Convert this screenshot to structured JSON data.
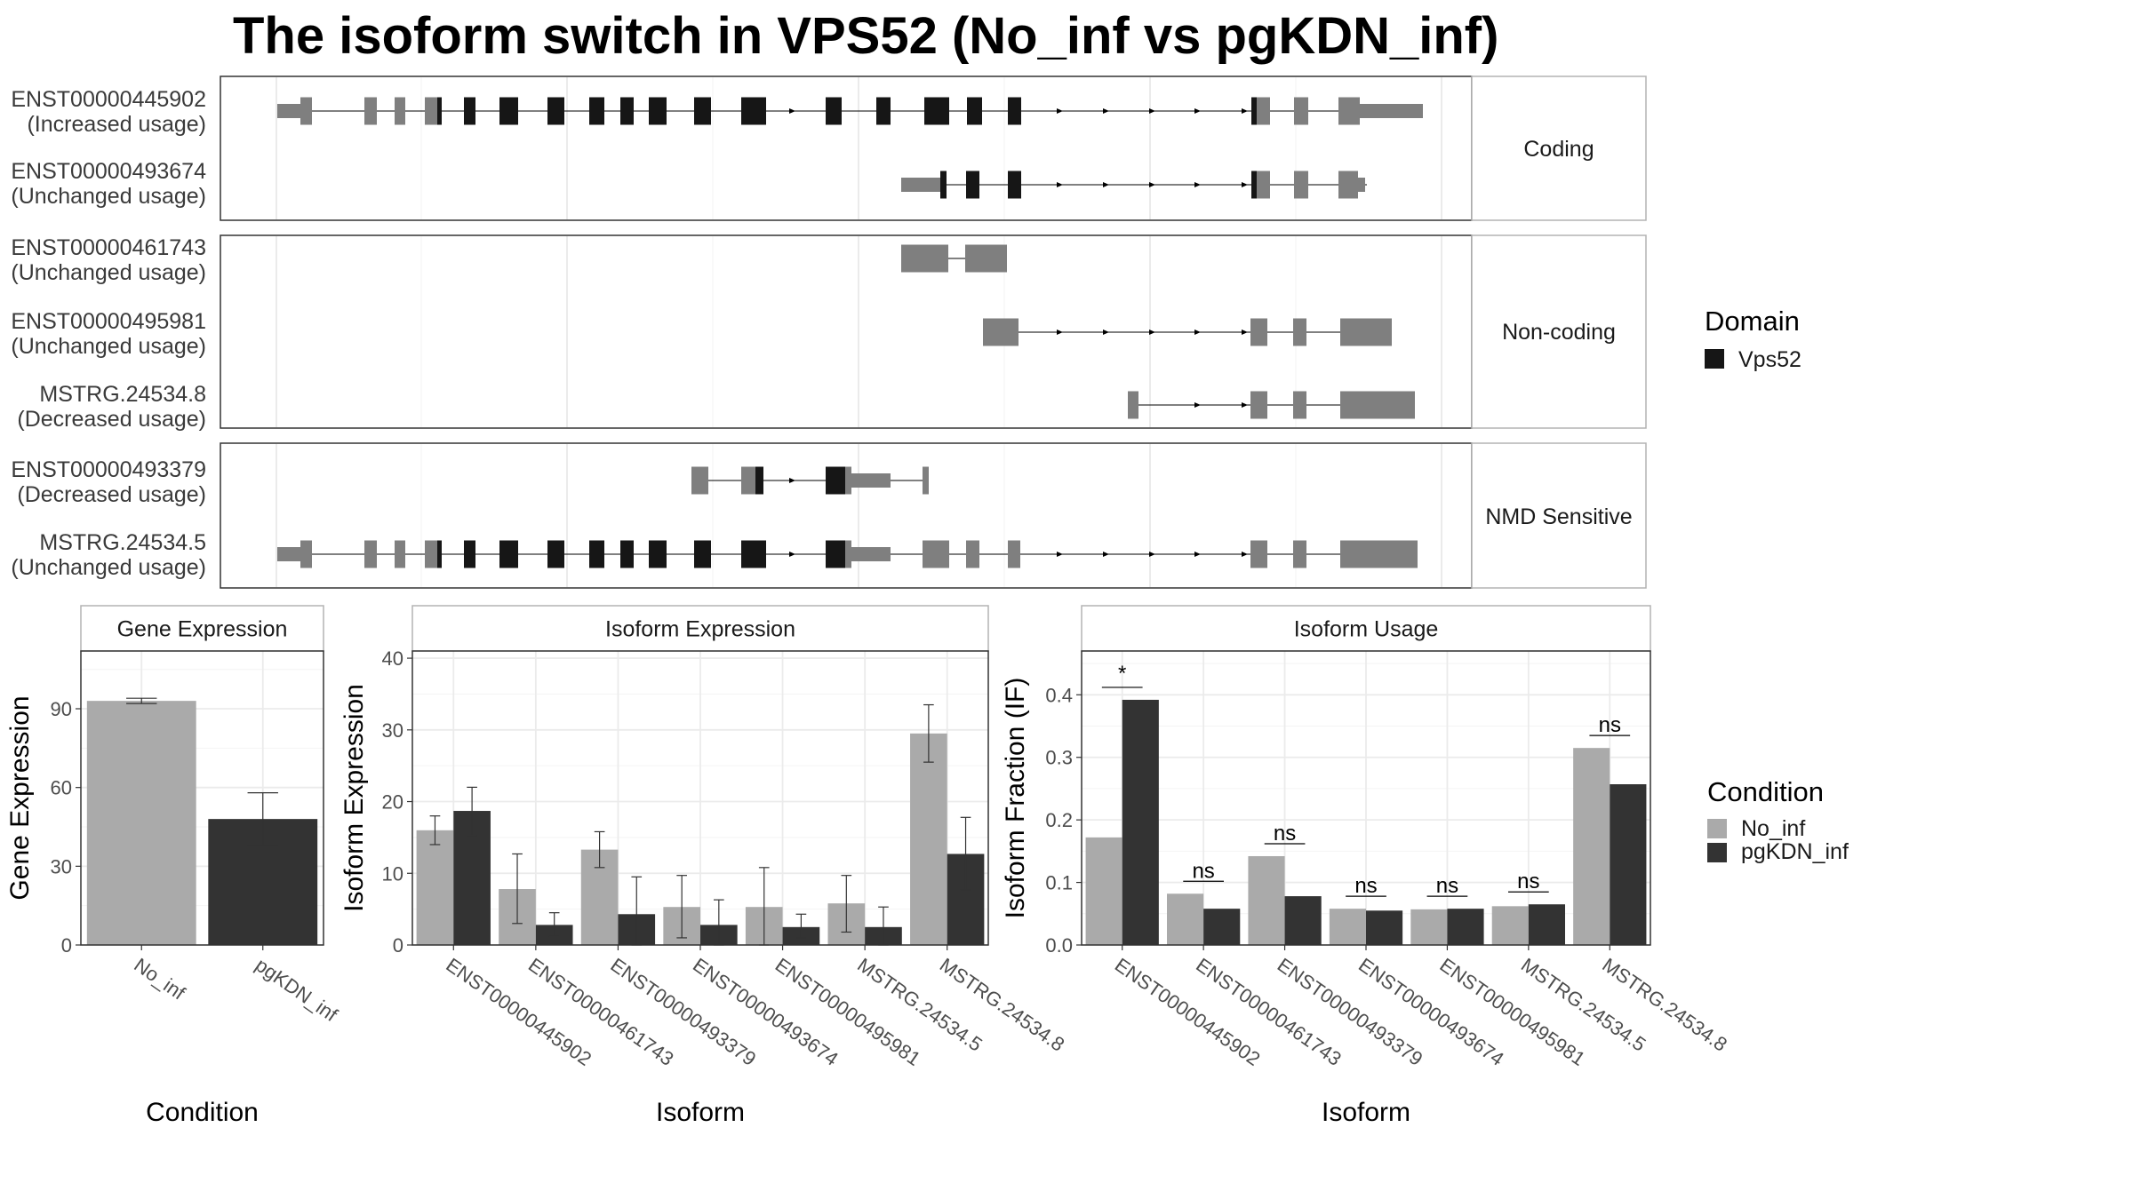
{
  "title": "The isoform switch in VPS52 (No_inf vs pgKDN_inf)",
  "colors": {
    "exon": "#7f7f7f",
    "domain": "#161616",
    "no_inf": "#aaaaaa",
    "pgkdn_inf": "#333333",
    "grid": "#ebebeb",
    "panel_border": "#333333",
    "strip_border": "#b3b3b3"
  },
  "domain_legend": {
    "title": "Domain",
    "items": [
      {
        "label": "Vps52",
        "color": "#161616"
      }
    ]
  },
  "condition_legend": {
    "title": "Condition",
    "items": [
      {
        "label": "No_inf",
        "color": "#aaaaaa"
      },
      {
        "label": "pgKDN_inf",
        "color": "#333333"
      }
    ]
  },
  "transcript_groups": [
    {
      "label": "Coding",
      "transcripts": [
        {
          "id": "ENST00000445902",
          "usage": "(Increased usage)"
        },
        {
          "id": "ENST00000493674",
          "usage": "(Unchanged usage)"
        }
      ]
    },
    {
      "label": "Non-coding",
      "transcripts": [
        {
          "id": "ENST00000461743",
          "usage": "(Unchanged usage)"
        },
        {
          "id": "ENST00000495981",
          "usage": "(Unchanged usage)"
        },
        {
          "id": "MSTRG.24534.8",
          "usage": "(Decreased usage)"
        }
      ]
    },
    {
      "label": "NMD Sensitive",
      "transcripts": [
        {
          "id": "ENST00000493379",
          "usage": "(Decreased usage)"
        },
        {
          "id": "MSTRG.24534.5",
          "usage": "(Unchanged usage)"
        }
      ]
    }
  ],
  "chart_data": [
    {
      "type": "bar",
      "panel": "Gene Expression",
      "xlabel": "Condition",
      "ylabel": "Gene Expression",
      "categories": [
        "No_inf",
        "pgKDN_inf"
      ],
      "values": [
        93,
        48
      ],
      "errors": [
        [
          92,
          94
        ],
        [
          38,
          58
        ]
      ],
      "bar_colors": [
        "#aaaaaa",
        "#333333"
      ],
      "ylim": [
        0,
        112
      ],
      "yticks": [
        0,
        30,
        60,
        90
      ],
      "grid": true
    },
    {
      "type": "bar",
      "panel": "Isoform Expression",
      "xlabel": "Isoform",
      "ylabel": "Isoform Expression",
      "categories": [
        "ENST00000445902",
        "ENST00000461743",
        "ENST00000493379",
        "ENST00000493674",
        "ENST00000495981",
        "MSTRG.24534.5",
        "MSTRG.24534.8"
      ],
      "series": [
        {
          "name": "No_inf",
          "values": [
            16,
            7.8,
            13.3,
            5.3,
            5.3,
            5.8,
            29.5
          ],
          "errors": [
            [
              14,
              18
            ],
            [
              3,
              12.7
            ],
            [
              10.8,
              15.8
            ],
            [
              1,
              9.7
            ],
            [
              0,
              10.8
            ],
            [
              1.8,
              9.7
            ],
            [
              25.5,
              33.5
            ]
          ]
        },
        {
          "name": "pgKDN_inf",
          "values": [
            18.7,
            2.8,
            4.3,
            2.8,
            2.5,
            2.5,
            12.7
          ],
          "errors": [
            [
              15.3,
              22
            ],
            [
              1.2,
              4.5
            ],
            [
              0,
              9.5
            ],
            [
              0,
              6.3
            ],
            [
              1,
              4.3
            ],
            [
              0,
              5.3
            ],
            [
              7.7,
              17.8
            ]
          ]
        }
      ],
      "ylim": [
        0,
        41
      ],
      "yticks": [
        0,
        10,
        20,
        30,
        40
      ],
      "grid": true
    },
    {
      "type": "bar",
      "panel": "Isoform Usage",
      "xlabel": "Isoform",
      "ylabel": "Isoform Fraction (IF)",
      "categories": [
        "ENST00000445902",
        "ENST00000461743",
        "ENST00000493379",
        "ENST00000493674",
        "ENST00000495981",
        "MSTRG.24534.5",
        "MSTRG.24534.8"
      ],
      "series": [
        {
          "name": "No_inf",
          "values": [
            0.172,
            0.082,
            0.142,
            0.058,
            0.057,
            0.062,
            0.315
          ]
        },
        {
          "name": "pgKDN_inf",
          "values": [
            0.392,
            0.058,
            0.078,
            0.055,
            0.058,
            0.065,
            0.257
          ]
        }
      ],
      "significance": [
        "*",
        "ns",
        "ns",
        "ns",
        "ns",
        "ns",
        "ns"
      ],
      "ylim": [
        0,
        0.47
      ],
      "yticks": [
        0.0,
        0.1,
        0.2,
        0.3,
        0.4
      ],
      "grid": true
    }
  ]
}
